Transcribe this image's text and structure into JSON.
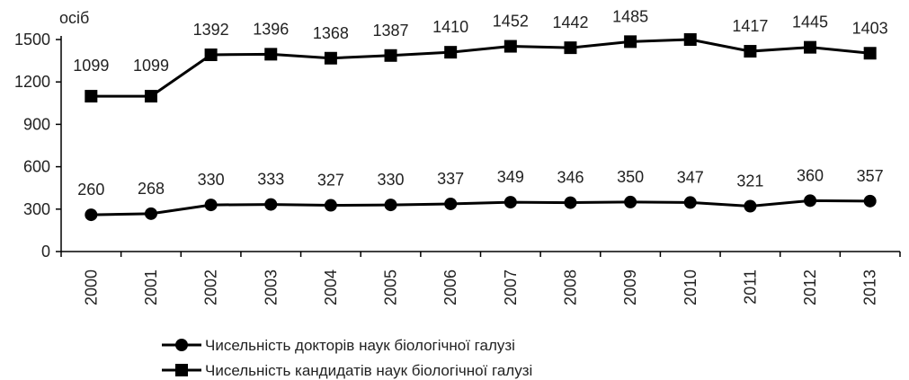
{
  "chart_data": {
    "type": "line",
    "unit_label": "осіб",
    "x": [
      "2000",
      "2001",
      "2002",
      "2003",
      "2004",
      "2005",
      "2006",
      "2007",
      "2008",
      "2009",
      "2010",
      "2011",
      "2012",
      "2013"
    ],
    "ylim": [
      0,
      1500
    ],
    "yticks": [
      0,
      300,
      600,
      900,
      1200,
      1500
    ],
    "grid": false,
    "legend_position": "bottom",
    "series": [
      {
        "name": "Чисельність докторів наук біологічної галузі",
        "marker": "circle",
        "color": "#000000",
        "values": [
          260,
          268,
          330,
          333,
          327,
          330,
          337,
          349,
          346,
          350,
          347,
          321,
          360,
          357
        ],
        "labels": [
          "260",
          "268",
          "330",
          "333",
          "327",
          "330",
          "337",
          "349",
          "346",
          "350",
          "347",
          "321",
          "360",
          "357"
        ]
      },
      {
        "name": "Чисельність кандидатів наук біологічної галузі",
        "marker": "square",
        "color": "#000000",
        "values": [
          1099,
          1099,
          1392,
          1396,
          1368,
          1387,
          1410,
          1452,
          1442,
          1485,
          1500,
          1417,
          1445,
          1403
        ],
        "labels": [
          "1099",
          "1099",
          "1392",
          "1396",
          "1368",
          "1387",
          "1410",
          "1452",
          "1442",
          "1485",
          "",
          "1417",
          "1445",
          "1403"
        ]
      }
    ]
  }
}
